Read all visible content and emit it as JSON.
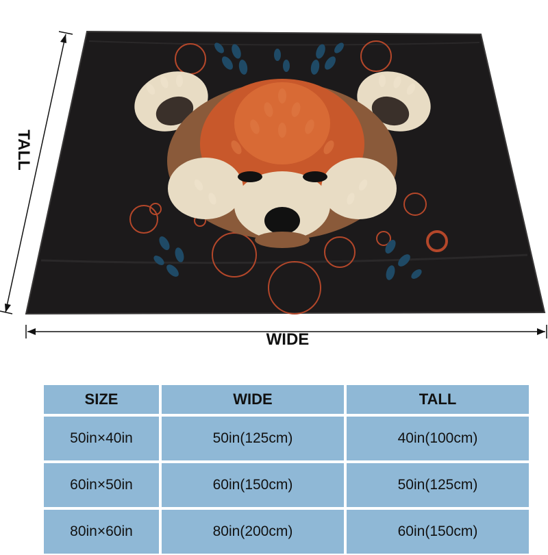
{
  "figure": {
    "wide_label": "WIDE",
    "tall_label": "TALL",
    "colors": {
      "blanket": "#1c1a1b",
      "leaf_cream": "#e8dcc4",
      "leaf_orange": "#c8582b",
      "leaf_brown": "#8a5a3a",
      "leaf_blue": "#1f4a66",
      "ring_orange": "#b4472a"
    }
  },
  "table": {
    "headers": [
      "SIZE",
      "WIDE",
      "TALL"
    ],
    "rows": [
      [
        "50in×40in",
        "50in(125cm)",
        "40in(100cm)"
      ],
      [
        "60in×50in",
        "60in(150cm)",
        "50in(125cm)"
      ],
      [
        "80in×60in",
        "80in(200cm)",
        "60in(150cm)"
      ]
    ],
    "colors": {
      "cell": "#8fb8d6"
    }
  }
}
